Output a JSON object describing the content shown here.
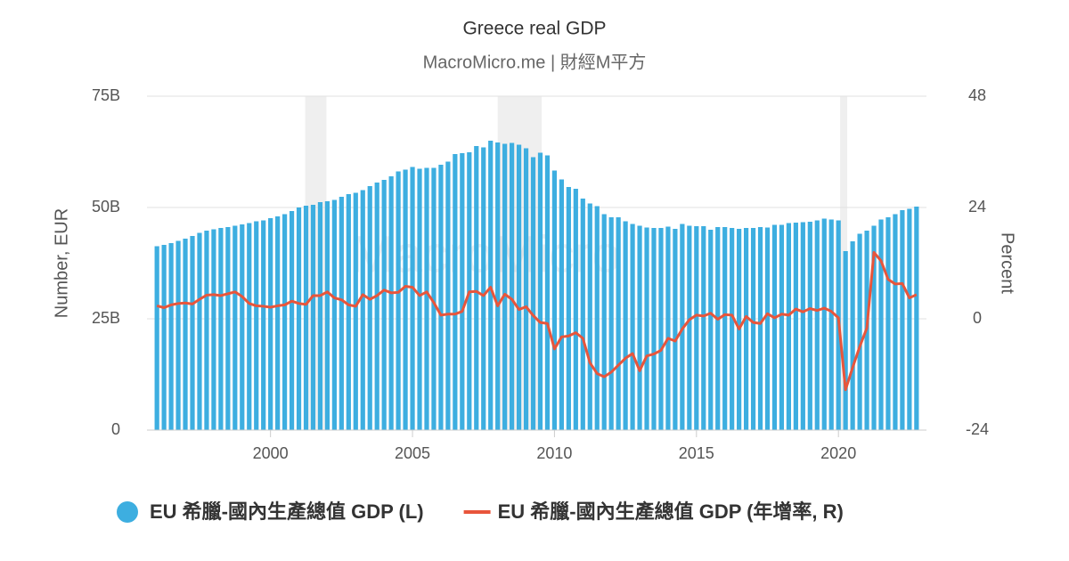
{
  "chart_data": {
    "type": "bar-line",
    "title": "Greece real GDP",
    "subtitle": "MacroMicro.me | 財經M平方",
    "watermark": "MacroMicro",
    "y_label": "Number, EUR",
    "y2_label": "Percent",
    "x": [
      1996,
      1996.25,
      1996.5,
      1996.75,
      1997,
      1997.25,
      1997.5,
      1997.75,
      1998,
      1998.25,
      1998.5,
      1998.75,
      1999,
      1999.25,
      1999.5,
      1999.75,
      2000,
      2000.25,
      2000.5,
      2000.75,
      2001,
      2001.25,
      2001.5,
      2001.75,
      2002,
      2002.25,
      2002.5,
      2002.75,
      2003,
      2003.25,
      2003.5,
      2003.75,
      2004,
      2004.25,
      2004.5,
      2004.75,
      2005,
      2005.25,
      2005.5,
      2005.75,
      2006,
      2006.25,
      2006.5,
      2006.75,
      2007,
      2007.25,
      2007.5,
      2007.75,
      2008,
      2008.25,
      2008.5,
      2008.75,
      2009,
      2009.25,
      2009.5,
      2009.75,
      2010,
      2010.25,
      2010.5,
      2010.75,
      2011,
      2011.25,
      2011.5,
      2011.75,
      2012,
      2012.25,
      2012.5,
      2012.75,
      2013,
      2013.25,
      2013.5,
      2013.75,
      2014,
      2014.25,
      2014.5,
      2014.75,
      2015,
      2015.25,
      2015.5,
      2015.75,
      2016,
      2016.25,
      2016.5,
      2016.75,
      2017,
      2017.25,
      2017.5,
      2017.75,
      2018,
      2018.25,
      2018.5,
      2018.75,
      2019,
      2019.25,
      2019.5,
      2019.75,
      2020,
      2020.25,
      2020.5,
      2020.75,
      2021,
      2021.25,
      2021.5,
      2021.75,
      2022,
      2022.25,
      2022.5,
      2022.75
    ],
    "xlim": [
      1995.65,
      2023.1
    ],
    "xticks": [
      2000,
      2005,
      2010,
      2015,
      2020
    ],
    "ylim": [
      0,
      75
    ],
    "yticks": [
      {
        "value": 0,
        "label": "0"
      },
      {
        "value": 25,
        "label": "25B"
      },
      {
        "value": 50,
        "label": "50B"
      },
      {
        "value": 75,
        "label": "75B"
      }
    ],
    "y2lim": [
      -24,
      48
    ],
    "y2ticks": [
      -24,
      0,
      24,
      48
    ],
    "grid": true,
    "recessions": [
      [
        2001.22,
        2001.97
      ],
      [
        2008.0,
        2009.55
      ],
      [
        2020.06,
        2020.31
      ]
    ],
    "series": [
      {
        "name": "EU 希臘-國內生產總值 GDP (L)",
        "color": "#3daee0",
        "kind": "bar",
        "values": [
          41.3,
          41.6,
          42,
          42.5,
          43,
          43.6,
          44.3,
          44.8,
          45.1,
          45.4,
          45.6,
          45.9,
          46.2,
          46.5,
          46.9,
          47.1,
          47.6,
          48,
          48.5,
          49.2,
          50,
          50.4,
          50.6,
          51.2,
          51.4,
          51.7,
          52.4,
          53,
          53.3,
          53.9,
          54.8,
          55.6,
          56.2,
          57,
          58.1,
          58.5,
          59.1,
          58.7,
          58.9,
          58.9,
          59.6,
          60.3,
          62,
          62.2,
          62.4,
          63.8,
          63.5,
          65,
          64.6,
          64.3,
          64.5,
          64.1,
          63.3,
          61.3,
          62.3,
          61.7,
          58.3,
          56.3,
          54.6,
          54.2,
          52,
          50.9,
          50.3,
          48.5,
          47.8,
          47.8,
          46.9,
          46.3,
          45.9,
          45.5,
          45.4,
          45.4,
          45.7,
          45.2,
          46.3,
          45.9,
          45.8,
          45.8,
          45,
          45.6,
          45.6,
          45.4,
          45.2,
          45.4,
          45.4,
          45.6,
          45.5,
          46.1,
          46.1,
          46.5,
          46.6,
          46.7,
          46.8,
          47.1,
          47.5,
          47.3,
          47.1,
          40.2,
          42.4,
          44.1,
          44.8,
          45.9,
          47.3,
          47.8,
          48.5,
          49.4,
          49.7,
          50.2
        ]
      },
      {
        "name": "EU 希臘-國內生產總值 GDP (年增率, R)",
        "color": "#e8553b",
        "kind": "line",
        "axis": "y2",
        "values": [
          2.8,
          2.4,
          3,
          3.3,
          3.4,
          3.2,
          4.2,
          5.1,
          5.2,
          5,
          5.4,
          5.8,
          4.8,
          3.3,
          2.8,
          2.7,
          2.5,
          2.8,
          3,
          3.8,
          3.3,
          3.1,
          5,
          5,
          5.8,
          4.5,
          4.1,
          3,
          2.7,
          5.2,
          4.2,
          5,
          6.2,
          5.6,
          5.7,
          7,
          6.8,
          5,
          5.8,
          3.5,
          0.8,
          1,
          1,
          1.6,
          5.8,
          5.9,
          5,
          6.8,
          2.8,
          5.3,
          4.2,
          2,
          2.6,
          0.7,
          -0.8,
          -1,
          -6.5,
          -3.9,
          -3.7,
          -3,
          -4.2,
          -9.5,
          -11.8,
          -12.5,
          -11.5,
          -10,
          -8.5,
          -7.5,
          -11.2,
          -8,
          -7.6,
          -6.8,
          -4.2,
          -4.8,
          -2.2,
          -0.2,
          0.8,
          0.6,
          1.2,
          -0.1,
          0.9,
          0.8,
          -2.2,
          0.5,
          -0.8,
          -1,
          1.1,
          0.2,
          1,
          0.8,
          2.1,
          1.5,
          2.2,
          1.8,
          2.3,
          1.6,
          0.2,
          -15.3,
          -10.5,
          -6,
          -2,
          14.3,
          12.5,
          8.5,
          7.5,
          7.6,
          4.5,
          5.2
        ]
      }
    ]
  }
}
